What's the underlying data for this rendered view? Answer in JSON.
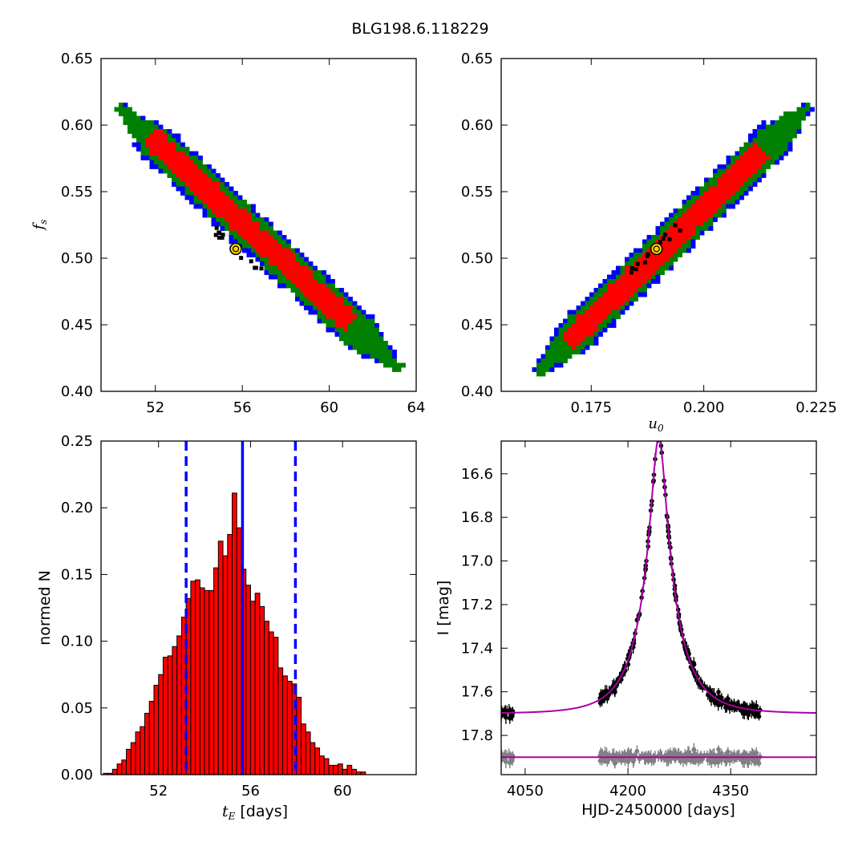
{
  "title": "BLG198.6.118229",
  "chart_data": [
    {
      "type": "heatmap",
      "panel": "top-left",
      "xlabel": "",
      "ylabel": "f_s",
      "xlim": [
        49.5,
        64
      ],
      "ylim": [
        0.4,
        0.65
      ],
      "xticks": [
        52,
        56,
        60,
        64
      ],
      "yticks": [
        0.4,
        0.45,
        0.5,
        0.55,
        0.6,
        0.65
      ],
      "region_colors": {
        "outer": "#0000ff",
        "middle": "#008000",
        "core": "#ff0000",
        "points": "#000000"
      },
      "ridge": {
        "x": [
          50.5,
          63.0
        ],
        "y": [
          0.61,
          0.42
        ]
      },
      "best_fit": {
        "x": 55.7,
        "y": 0.507
      },
      "marker_color": "#ffd700"
    },
    {
      "type": "heatmap",
      "panel": "top-right",
      "xlabel": "u_0",
      "ylabel": "",
      "xlim": [
        0.155,
        0.225
      ],
      "ylim": [
        0.4,
        0.65
      ],
      "xticks": [
        0.175,
        0.2,
        0.225
      ],
      "xtick_labels": [
        "0.175",
        "0.200",
        "0.225"
      ],
      "yticks": [
        0.4,
        0.45,
        0.5,
        0.55,
        0.6,
        0.65
      ],
      "region_colors": {
        "outer": "#0000ff",
        "middle": "#008000",
        "core": "#ff0000",
        "points": "#000000"
      },
      "ridge": {
        "x": [
          0.164,
          0.2225
        ],
        "y": [
          0.417,
          0.612
        ]
      },
      "best_fit": {
        "x": 0.1895,
        "y": 0.507
      },
      "marker_color": "#ffd700"
    },
    {
      "type": "bar",
      "panel": "bottom-left",
      "xlabel": "t_E",
      "xlabel_unit": " [days]",
      "ylabel": "normed N",
      "xlim": [
        49.5,
        63.2
      ],
      "ylim": [
        0,
        0.25
      ],
      "xticks": [
        52,
        56,
        60
      ],
      "yticks": [
        0.0,
        0.05,
        0.1,
        0.15,
        0.2,
        0.25
      ],
      "bin_start": 49.6,
      "bin_width": 0.2,
      "values": [
        0.001,
        0.001,
        0.004,
        0.008,
        0.011,
        0.019,
        0.024,
        0.032,
        0.036,
        0.046,
        0.055,
        0.067,
        0.075,
        0.088,
        0.089,
        0.096,
        0.104,
        0.118,
        0.132,
        0.145,
        0.146,
        0.14,
        0.138,
        0.138,
        0.155,
        0.175,
        0.164,
        0.18,
        0.211,
        0.185,
        0.154,
        0.142,
        0.13,
        0.136,
        0.126,
        0.115,
        0.107,
        0.103,
        0.08,
        0.074,
        0.07,
        0.068,
        0.058,
        0.038,
        0.032,
        0.024,
        0.02,
        0.014,
        0.012,
        0.007,
        0.007,
        0.008,
        0.004,
        0.007,
        0.004,
        0.002,
        0.002
      ],
      "bar_color": "#ff0000",
      "vlines": [
        {
          "x": 55.65,
          "style": "solid",
          "color": "#0000ff"
        },
        {
          "x": 53.2,
          "style": "dashed",
          "color": "#0000ff"
        },
        {
          "x": 57.95,
          "style": "dashed",
          "color": "#0000ff"
        }
      ]
    },
    {
      "type": "scatter",
      "panel": "bottom-right",
      "xlabel": "HJD-2450000 [days]",
      "ylabel": "I [mag]",
      "xlim": [
        4015,
        4475
      ],
      "ylim": [
        17.98,
        16.45
      ],
      "xticks": [
        4050,
        4200,
        4350
      ],
      "yticks": [
        16.6,
        16.8,
        17.0,
        17.2,
        17.4,
        17.6,
        17.8
      ],
      "model": {
        "t0": 4245,
        "tE": 55.65,
        "u0": 0.1895,
        "fs": 0.507,
        "I_base": 17.7
      },
      "residual_level": 17.9,
      "model_color": "#aa00aa",
      "data_color": "#000000",
      "residual_color": "#808080",
      "observation_seasons": [
        [
          4015,
          4033
        ],
        [
          4158,
          4395
        ]
      ]
    }
  ]
}
